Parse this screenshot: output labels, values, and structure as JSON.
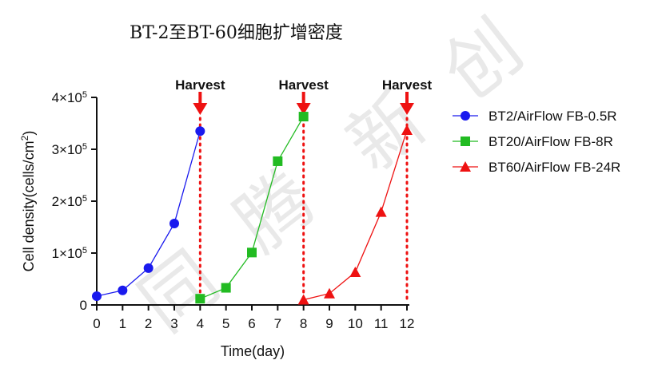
{
  "chart_data": {
    "type": "line",
    "title": "BT-2至BT-60细胞扩增密度",
    "xlabel": "Time(day)",
    "ylabel_main": "Cell density(cells/cm",
    "ylabel_sup": "2",
    "ylabel_close": ")",
    "xlim": [
      0,
      12
    ],
    "ylim": [
      0,
      400000
    ],
    "x_ticks": [
      0,
      1,
      2,
      3,
      4,
      5,
      6,
      7,
      8,
      9,
      10,
      11,
      12
    ],
    "y_ticks": [
      {
        "value": 0,
        "base": "0",
        "exp": ""
      },
      {
        "value": 100000,
        "base": "1×10",
        "exp": "5"
      },
      {
        "value": 200000,
        "base": "2×10",
        "exp": "5"
      },
      {
        "value": 300000,
        "base": "3×10",
        "exp": "5"
      },
      {
        "value": 400000,
        "base": "4×10",
        "exp": "5"
      }
    ],
    "grid": false,
    "legend_position": "right",
    "series": [
      {
        "name": "BT2/AirFlow FB-0.5R",
        "color": "#1a1aee",
        "marker": "circle",
        "x": [
          0,
          1,
          2,
          3,
          4
        ],
        "y": [
          17000,
          28000,
          71000,
          157000,
          335000
        ]
      },
      {
        "name": "BT20/AirFlow FB-8R",
        "color": "#22bb22",
        "marker": "square",
        "x": [
          4,
          5,
          6,
          7,
          8
        ],
        "y": [
          12000,
          33000,
          101000,
          277000,
          363000
        ]
      },
      {
        "name": "BT60/AirFlow FB-24R",
        "color": "#ee1111",
        "marker": "triangle",
        "x": [
          8,
          9,
          10,
          11,
          12
        ],
        "y": [
          10000,
          22000,
          63000,
          179000,
          337000
        ]
      }
    ],
    "annotations": [
      {
        "text": "Harvest",
        "x": 4,
        "color": "#ee1111"
      },
      {
        "text": "Harvest",
        "x": 8,
        "color": "#ee1111"
      },
      {
        "text": "Harvest",
        "x": 12,
        "color": "#ee1111"
      }
    ]
  },
  "watermark": [
    "同",
    "腾",
    "新",
    "创"
  ]
}
